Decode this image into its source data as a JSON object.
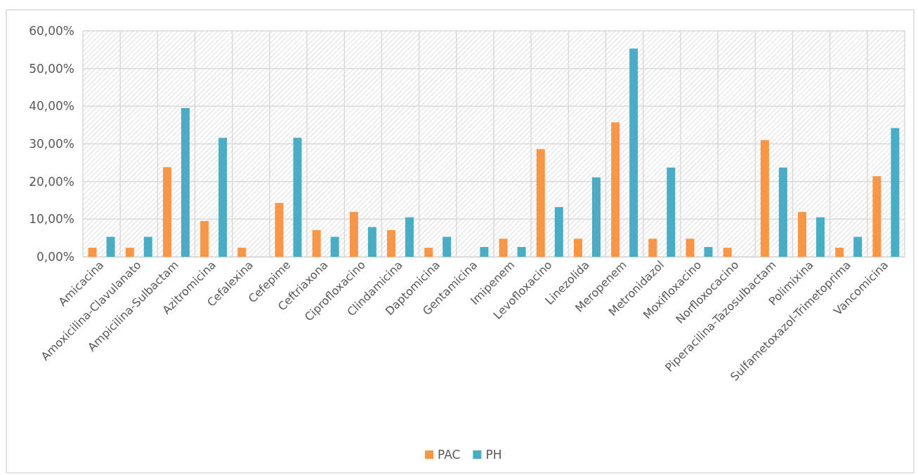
{
  "chart_data": {
    "type": "bar",
    "categories": [
      "Amicacina",
      "Amoxicilina-Clavulanato",
      "Ampicilina-Sulbactam",
      "Azitromicina",
      "Cefalexina",
      "Cefepime",
      "Ceftriaxona",
      "Ciprofloxacino",
      "Clindamicina",
      "Daptomicina",
      "Gentamicina",
      "Imipenem",
      "Levofloxacino",
      "Linezolida",
      "Meropenem",
      "Metronidazol",
      "Moxifloxacino",
      "Norfloxocacino",
      "Piperacilina-Tazosulbactam",
      "Polimixina",
      "Sulfametoxazol-Trimetoprima",
      "Vancomicina"
    ],
    "series": [
      {
        "name": "PAC",
        "color": "#f79646",
        "values": [
          2.4,
          2.4,
          23.8,
          9.5,
          2.4,
          14.3,
          7.1,
          11.9,
          7.1,
          2.4,
          null,
          4.8,
          28.6,
          4.8,
          35.7,
          4.8,
          4.8,
          2.4,
          31.0,
          11.9,
          2.4,
          21.4
        ]
      },
      {
        "name": "PH",
        "color": "#4bacc6",
        "values": [
          5.3,
          5.3,
          39.5,
          31.6,
          null,
          31.6,
          5.3,
          7.9,
          10.5,
          5.3,
          2.6,
          2.6,
          13.2,
          21.1,
          55.3,
          23.7,
          2.6,
          null,
          23.7,
          10.5,
          5.3,
          34.2
        ]
      }
    ],
    "ylim": [
      0,
      60
    ],
    "yticks": [
      {
        "value": 0,
        "label": "0,00%"
      },
      {
        "value": 10,
        "label": "10,00%"
      },
      {
        "value": 20,
        "label": "20,00%"
      },
      {
        "value": 30,
        "label": "30,00%"
      },
      {
        "value": 40,
        "label": "40,00%"
      },
      {
        "value": 50,
        "label": "50,00%"
      },
      {
        "value": 60,
        "label": "60,00%"
      }
    ],
    "grid": true,
    "legend": "bottom"
  }
}
